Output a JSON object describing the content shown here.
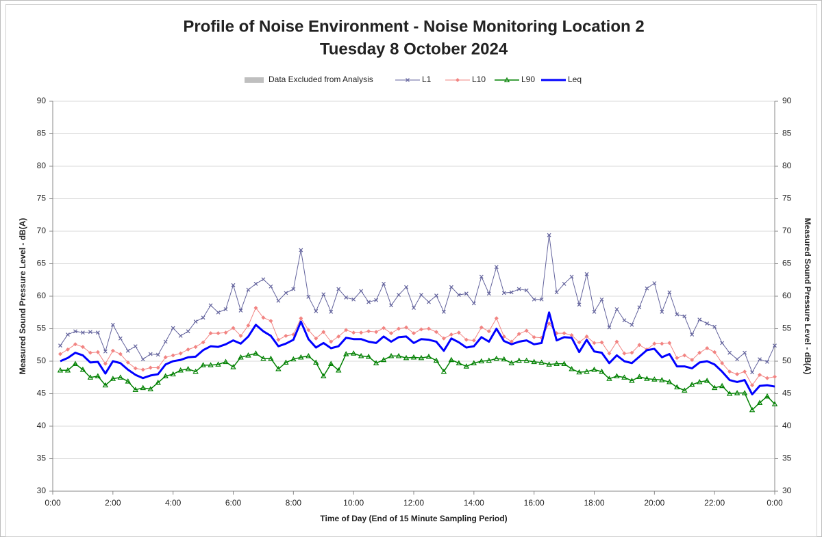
{
  "chart_data": {
    "type": "line",
    "title": "Profile of Noise Environment - Noise Monitoring Location 2",
    "subtitle": "Tuesday 8 October 2024",
    "xlabel": "Time of Day (End of 15 Minute Sampling Period)",
    "ylabel": "Measured Sound Pressure Level - dB(A)",
    "y2label": "Measured Sound Pressure Level - dB(A)",
    "legend_extra": [
      {
        "name": "Data Excluded from Analysis",
        "color": "#bfbfbf"
      }
    ],
    "x": [
      0.25,
      0.5,
      0.75,
      1,
      1.25,
      1.5,
      1.75,
      2,
      2.25,
      2.5,
      2.75,
      3,
      3.25,
      3.5,
      3.75,
      4,
      4.25,
      4.5,
      4.75,
      5,
      5.25,
      5.5,
      5.75,
      6,
      6.25,
      6.5,
      6.75,
      7,
      7.25,
      7.5,
      7.75,
      8,
      8.25,
      8.5,
      8.75,
      9,
      9.25,
      9.5,
      9.75,
      10,
      10.25,
      10.5,
      10.75,
      11,
      11.25,
      11.5,
      11.75,
      12,
      12.25,
      12.5,
      12.75,
      13,
      13.25,
      13.5,
      13.75,
      14,
      14.25,
      14.5,
      14.75,
      15,
      15.25,
      15.5,
      15.75,
      16,
      16.25,
      16.5,
      16.75,
      17,
      17.25,
      17.5,
      17.75,
      18,
      18.25,
      18.5,
      18.75,
      19,
      19.25,
      19.5,
      19.75,
      20,
      20.25,
      20.5,
      20.75,
      21,
      21.25,
      21.5,
      21.75,
      22,
      22.25,
      22.5,
      22.75,
      23,
      23.25,
      23.5,
      23.75,
      24
    ],
    "series": [
      {
        "name": "L1",
        "color": "#62629c",
        "marker": "x",
        "width": 1,
        "values": [
          52.4,
          54.1,
          54.6,
          54.4,
          54.5,
          54.4,
          51.5,
          55.6,
          53.5,
          51.6,
          52.3,
          50.3,
          51.1,
          51.0,
          53.0,
          55.1,
          53.9,
          54.6,
          56.1,
          56.7,
          58.6,
          57.5,
          58.0,
          61.7,
          57.8,
          61.0,
          61.9,
          62.6,
          61.5,
          59.3,
          60.5,
          61.1,
          67.1,
          59.9,
          57.7,
          60.3,
          57.6,
          61.1,
          59.8,
          59.5,
          60.8,
          59.1,
          59.4,
          61.9,
          58.6,
          60.2,
          61.4,
          58.2,
          60.2,
          59.1,
          60.1,
          57.6,
          61.4,
          60.2,
          60.4,
          58.9,
          63.0,
          60.4,
          64.5,
          60.5,
          60.6,
          61.1,
          60.9,
          59.5,
          59.5,
          69.4,
          60.6,
          61.9,
          63.0,
          58.7,
          63.4,
          57.6,
          59.5,
          55.2,
          58.0,
          56.3,
          55.6,
          58.3,
          61.2,
          62.0,
          57.6,
          60.6,
          57.2,
          56.9,
          54.1,
          56.4,
          55.8,
          55.3,
          52.8,
          51.3,
          50.3,
          51.3,
          48.3,
          50.3,
          49.9,
          52.4
        ]
      },
      {
        "name": "L10",
        "color": "#f28482",
        "marker": "diamond",
        "width": 1,
        "values": [
          51.1,
          51.8,
          52.6,
          52.2,
          51.3,
          51.4,
          49.6,
          51.6,
          51.1,
          49.8,
          48.9,
          48.7,
          49.0,
          49.0,
          50.6,
          50.9,
          51.2,
          51.8,
          52.2,
          52.9,
          54.3,
          54.3,
          54.4,
          55.1,
          53.9,
          55.5,
          58.2,
          56.7,
          56.2,
          53.3,
          53.9,
          54.1,
          56.6,
          54.8,
          53.5,
          54.5,
          53.0,
          53.8,
          54.8,
          54.4,
          54.4,
          54.6,
          54.5,
          55.1,
          54.3,
          55.0,
          55.2,
          54.3,
          54.9,
          55.0,
          54.5,
          53.5,
          54.1,
          54.4,
          53.3,
          53.2,
          55.2,
          54.6,
          56.6,
          53.8,
          53.0,
          54.2,
          54.7,
          53.7,
          53.6,
          55.8,
          54.3,
          54.3,
          54.0,
          52.9,
          53.8,
          52.8,
          52.9,
          51.2,
          53.0,
          51.2,
          51.3,
          52.5,
          51.8,
          52.7,
          52.7,
          52.8,
          50.5,
          50.9,
          50.2,
          51.3,
          52.0,
          51.4,
          49.7,
          48.4,
          48.0,
          48.4,
          46.3,
          47.9,
          47.4,
          47.6
        ]
      },
      {
        "name": "L90",
        "color": "#008000",
        "marker": "triangle",
        "width": 1.5,
        "values": [
          48.6,
          48.6,
          49.6,
          48.7,
          47.5,
          47.7,
          46.3,
          47.3,
          47.5,
          46.9,
          45.6,
          45.9,
          45.7,
          46.7,
          47.7,
          48.0,
          48.6,
          48.8,
          48.4,
          49.4,
          49.4,
          49.5,
          49.9,
          49.1,
          50.6,
          50.9,
          51.2,
          50.4,
          50.4,
          48.8,
          49.8,
          50.3,
          50.6,
          50.8,
          49.8,
          47.7,
          49.6,
          48.6,
          51.1,
          51.2,
          50.8,
          50.7,
          49.7,
          50.2,
          50.8,
          50.8,
          50.5,
          50.6,
          50.5,
          50.7,
          50.1,
          48.4,
          50.2,
          49.7,
          49.2,
          49.7,
          50.0,
          50.1,
          50.4,
          50.3,
          49.7,
          50.1,
          50.1,
          49.9,
          49.8,
          49.5,
          49.6,
          49.6,
          48.8,
          48.3,
          48.4,
          48.7,
          48.4,
          47.3,
          47.7,
          47.5,
          47.0,
          47.6,
          47.3,
          47.2,
          47.1,
          46.8,
          46.0,
          45.5,
          46.4,
          46.8,
          47.0,
          45.9,
          46.2,
          45.0,
          45.1,
          45.1,
          42.5,
          43.6,
          44.6,
          43.4
        ]
      },
      {
        "name": "Leq",
        "color": "#0000ff",
        "marker": "none",
        "width": 3,
        "values": [
          50.0,
          50.5,
          51.3,
          50.9,
          49.8,
          49.9,
          48.1,
          50.0,
          49.7,
          48.7,
          47.9,
          47.4,
          47.8,
          48.0,
          49.5,
          50.0,
          50.2,
          50.6,
          50.7,
          51.7,
          52.3,
          52.2,
          52.6,
          53.2,
          52.7,
          53.8,
          55.6,
          54.6,
          53.9,
          52.3,
          52.7,
          53.3,
          56.1,
          53.4,
          52.1,
          52.8,
          52.0,
          52.3,
          53.6,
          53.4,
          53.4,
          53.0,
          52.8,
          53.8,
          53.0,
          53.7,
          53.8,
          52.8,
          53.4,
          53.3,
          53.0,
          51.6,
          53.5,
          52.9,
          52.1,
          52.3,
          53.7,
          53.0,
          55.0,
          53.1,
          52.6,
          53.0,
          53.2,
          52.6,
          52.8,
          57.5,
          53.2,
          53.7,
          53.6,
          51.4,
          53.3,
          51.5,
          51.3,
          49.7,
          50.9,
          50.0,
          49.7,
          50.7,
          51.7,
          51.9,
          50.6,
          51.1,
          49.2,
          49.2,
          48.9,
          49.8,
          50.0,
          49.5,
          48.4,
          47.1,
          46.8,
          47.1,
          44.9,
          46.2,
          46.3,
          46.1
        ]
      }
    ],
    "xlim": [
      0,
      24
    ],
    "xticks": [
      {
        "value": 0,
        "label": "0:00"
      },
      {
        "value": 2,
        "label": "2:00"
      },
      {
        "value": 4,
        "label": "4:00"
      },
      {
        "value": 6,
        "label": "6:00"
      },
      {
        "value": 8,
        "label": "8:00"
      },
      {
        "value": 10,
        "label": "10:00"
      },
      {
        "value": 12,
        "label": "12:00"
      },
      {
        "value": 14,
        "label": "14:00"
      },
      {
        "value": 16,
        "label": "16:00"
      },
      {
        "value": 18,
        "label": "18:00"
      },
      {
        "value": 20,
        "label": "20:00"
      },
      {
        "value": 22,
        "label": "22:00"
      },
      {
        "value": 24,
        "label": "0:00"
      }
    ],
    "ylim": [
      30,
      90
    ],
    "yticks": [
      30,
      35,
      40,
      45,
      50,
      55,
      60,
      65,
      70,
      75,
      80,
      85,
      90
    ],
    "y2lim": [
      30,
      90
    ],
    "y2ticks": [
      30,
      35,
      40,
      45,
      50,
      55,
      60,
      65,
      70,
      75,
      80,
      85,
      90
    ],
    "grid": true
  }
}
